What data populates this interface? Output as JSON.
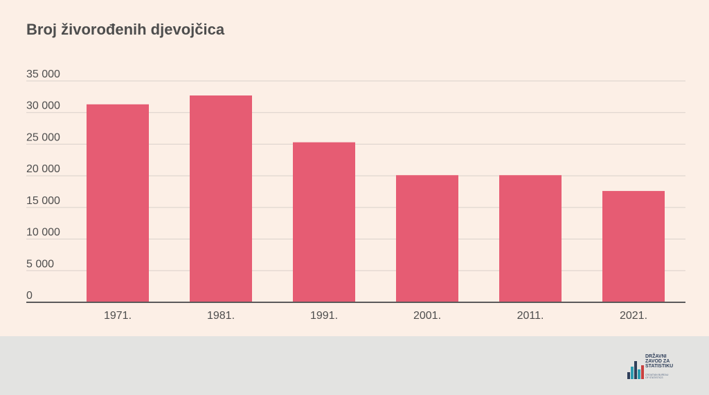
{
  "chart_data": {
    "type": "bar",
    "title": "Broj živorođenih djevojčica",
    "categories": [
      "1971.",
      "1981.",
      "1991.",
      "2001.",
      "2011.",
      "2021."
    ],
    "values": [
      31300,
      32700,
      25300,
      20100,
      20100,
      17600
    ],
    "ylim": [
      0,
      35000
    ],
    "yticks": [
      0,
      5000,
      10000,
      15000,
      20000,
      25000,
      30000,
      35000
    ],
    "ytick_labels": [
      "0",
      "5 000",
      "10 000",
      "15 000",
      "20 000",
      "25 000",
      "30 000",
      "35 000"
    ],
    "grid": true,
    "xlabel": "",
    "ylabel": ""
  },
  "colors": {
    "bar": "#e65c73",
    "background": "#fcefe6",
    "grid": "#d9d0ca",
    "axis": "#5a5a5a",
    "text": "#4d4d4d"
  },
  "logo": {
    "text": "DRŽAVNI\nZAVOD ZA\nSTATISTIKU",
    "subtext": "CROATIAN BUREAU\nOF STATISTICS",
    "icon": "bar-chart-logo-icon"
  }
}
